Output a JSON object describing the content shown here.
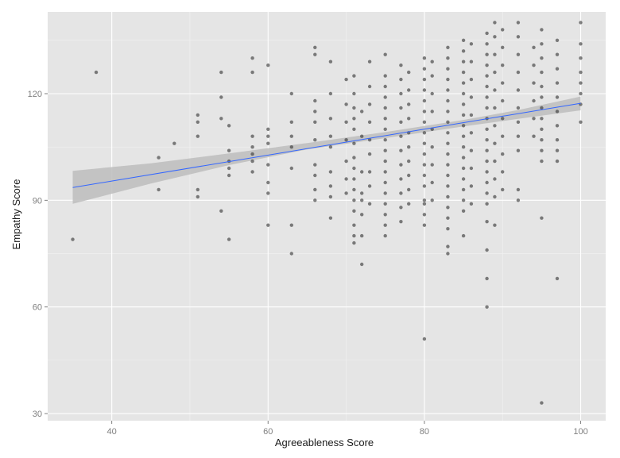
{
  "chart_data": {
    "type": "scatter",
    "title": "",
    "xlabel": "Agreeableness Score",
    "ylabel": "Empathy Score",
    "xlim": [
      31.8,
      103.2
    ],
    "ylim": [
      28,
      143
    ],
    "x_ticks": [
      40,
      60,
      80,
      100
    ],
    "x_minor_ticks": [
      30,
      50,
      70,
      90
    ],
    "y_ticks": [
      30,
      60,
      90,
      120
    ],
    "y_minor_ticks": [
      45,
      75,
      105,
      135
    ],
    "grid": true,
    "legend": "none",
    "colors": {
      "panel": "#e5e5e5",
      "grid": "#ffffff",
      "point": "#2f2f2f",
      "fit_line": "#3366ff",
      "confidence_band": "#bdbdbd"
    },
    "points": [
      {
        "x": 35,
        "y": 79
      },
      {
        "x": 38,
        "y": 126
      },
      {
        "x": 46,
        "y": 102
      },
      {
        "x": 46,
        "y": 93
      },
      {
        "x": 48,
        "y": 106
      },
      {
        "x": 51,
        "y": 114
      },
      {
        "x": 51,
        "y": 112
      },
      {
        "x": 51,
        "y": 108
      },
      {
        "x": 51,
        "y": 93
      },
      {
        "x": 51,
        "y": 91
      },
      {
        "x": 54,
        "y": 126
      },
      {
        "x": 54,
        "y": 119
      },
      {
        "x": 54,
        "y": 113
      },
      {
        "x": 54,
        "y": 87
      },
      {
        "x": 55,
        "y": 111
      },
      {
        "x": 55,
        "y": 104
      },
      {
        "x": 55,
        "y": 101
      },
      {
        "x": 55,
        "y": 99
      },
      {
        "x": 55,
        "y": 97
      },
      {
        "x": 55,
        "y": 79
      },
      {
        "x": 58,
        "y": 130
      },
      {
        "x": 58,
        "y": 126
      },
      {
        "x": 58,
        "y": 108
      },
      {
        "x": 58,
        "y": 105
      },
      {
        "x": 58,
        "y": 103
      },
      {
        "x": 58,
        "y": 101
      },
      {
        "x": 58,
        "y": 98
      },
      {
        "x": 60,
        "y": 128
      },
      {
        "x": 60,
        "y": 110
      },
      {
        "x": 60,
        "y": 108
      },
      {
        "x": 60,
        "y": 106
      },
      {
        "x": 60,
        "y": 100
      },
      {
        "x": 60,
        "y": 95
      },
      {
        "x": 60,
        "y": 92
      },
      {
        "x": 60,
        "y": 83
      },
      {
        "x": 63,
        "y": 120
      },
      {
        "x": 63,
        "y": 112
      },
      {
        "x": 63,
        "y": 108
      },
      {
        "x": 63,
        "y": 105
      },
      {
        "x": 63,
        "y": 99
      },
      {
        "x": 63,
        "y": 83
      },
      {
        "x": 63,
        "y": 75
      },
      {
        "x": 66,
        "y": 133
      },
      {
        "x": 66,
        "y": 131
      },
      {
        "x": 66,
        "y": 118
      },
      {
        "x": 66,
        "y": 115
      },
      {
        "x": 66,
        "y": 112
      },
      {
        "x": 66,
        "y": 107
      },
      {
        "x": 66,
        "y": 100
      },
      {
        "x": 66,
        "y": 97
      },
      {
        "x": 66,
        "y": 93
      },
      {
        "x": 66,
        "y": 90
      },
      {
        "x": 68,
        "y": 129
      },
      {
        "x": 68,
        "y": 120
      },
      {
        "x": 68,
        "y": 113
      },
      {
        "x": 68,
        "y": 108
      },
      {
        "x": 68,
        "y": 105
      },
      {
        "x": 68,
        "y": 98
      },
      {
        "x": 68,
        "y": 94
      },
      {
        "x": 68,
        "y": 91
      },
      {
        "x": 68,
        "y": 85
      },
      {
        "x": 70,
        "y": 124
      },
      {
        "x": 70,
        "y": 117
      },
      {
        "x": 70,
        "y": 112
      },
      {
        "x": 70,
        "y": 107
      },
      {
        "x": 70,
        "y": 101
      },
      {
        "x": 70,
        "y": 96
      },
      {
        "x": 70,
        "y": 92
      },
      {
        "x": 71,
        "y": 125
      },
      {
        "x": 71,
        "y": 120
      },
      {
        "x": 71,
        "y": 116
      },
      {
        "x": 71,
        "y": 113
      },
      {
        "x": 71,
        "y": 110
      },
      {
        "x": 71,
        "y": 106
      },
      {
        "x": 71,
        "y": 102
      },
      {
        "x": 71,
        "y": 99
      },
      {
        "x": 71,
        "y": 96
      },
      {
        "x": 71,
        "y": 93
      },
      {
        "x": 71,
        "y": 90
      },
      {
        "x": 71,
        "y": 87
      },
      {
        "x": 71,
        "y": 83
      },
      {
        "x": 71,
        "y": 80
      },
      {
        "x": 71,
        "y": 78
      },
      {
        "x": 72,
        "y": 115
      },
      {
        "x": 72,
        "y": 108
      },
      {
        "x": 72,
        "y": 98
      },
      {
        "x": 72,
        "y": 92
      },
      {
        "x": 72,
        "y": 90
      },
      {
        "x": 72,
        "y": 86
      },
      {
        "x": 72,
        "y": 80
      },
      {
        "x": 72,
        "y": 72
      },
      {
        "x": 73,
        "y": 129
      },
      {
        "x": 73,
        "y": 122
      },
      {
        "x": 73,
        "y": 117
      },
      {
        "x": 73,
        "y": 112
      },
      {
        "x": 73,
        "y": 107
      },
      {
        "x": 73,
        "y": 103
      },
      {
        "x": 73,
        "y": 98
      },
      {
        "x": 73,
        "y": 94
      },
      {
        "x": 73,
        "y": 89
      },
      {
        "x": 75,
        "y": 131
      },
      {
        "x": 75,
        "y": 125
      },
      {
        "x": 75,
        "y": 122
      },
      {
        "x": 75,
        "y": 119
      },
      {
        "x": 75,
        "y": 116
      },
      {
        "x": 75,
        "y": 113
      },
      {
        "x": 75,
        "y": 110
      },
      {
        "x": 75,
        "y": 107
      },
      {
        "x": 75,
        "y": 104
      },
      {
        "x": 75,
        "y": 101
      },
      {
        "x": 75,
        "y": 98
      },
      {
        "x": 75,
        "y": 95
      },
      {
        "x": 75,
        "y": 92
      },
      {
        "x": 75,
        "y": 89
      },
      {
        "x": 75,
        "y": 86
      },
      {
        "x": 75,
        "y": 83
      },
      {
        "x": 75,
        "y": 80
      },
      {
        "x": 77,
        "y": 128
      },
      {
        "x": 77,
        "y": 124
      },
      {
        "x": 77,
        "y": 120
      },
      {
        "x": 77,
        "y": 116
      },
      {
        "x": 77,
        "y": 112
      },
      {
        "x": 77,
        "y": 108
      },
      {
        "x": 77,
        "y": 104
      },
      {
        "x": 77,
        "y": 100
      },
      {
        "x": 77,
        "y": 96
      },
      {
        "x": 77,
        "y": 92
      },
      {
        "x": 77,
        "y": 88
      },
      {
        "x": 77,
        "y": 84
      },
      {
        "x": 78,
        "y": 126
      },
      {
        "x": 78,
        "y": 121
      },
      {
        "x": 78,
        "y": 117
      },
      {
        "x": 78,
        "y": 113
      },
      {
        "x": 78,
        "y": 109
      },
      {
        "x": 78,
        "y": 105
      },
      {
        "x": 78,
        "y": 101
      },
      {
        "x": 78,
        "y": 97
      },
      {
        "x": 78,
        "y": 93
      },
      {
        "x": 78,
        "y": 89
      },
      {
        "x": 80,
        "y": 130
      },
      {
        "x": 80,
        "y": 127
      },
      {
        "x": 80,
        "y": 124
      },
      {
        "x": 80,
        "y": 121
      },
      {
        "x": 80,
        "y": 118
      },
      {
        "x": 80,
        "y": 115
      },
      {
        "x": 80,
        "y": 112
      },
      {
        "x": 80,
        "y": 109
      },
      {
        "x": 80,
        "y": 106
      },
      {
        "x": 80,
        "y": 103
      },
      {
        "x": 80,
        "y": 100
      },
      {
        "x": 80,
        "y": 97
      },
      {
        "x": 80,
        "y": 94
      },
      {
        "x": 80,
        "y": 90
      },
      {
        "x": 80,
        "y": 89
      },
      {
        "x": 80,
        "y": 86
      },
      {
        "x": 80,
        "y": 83
      },
      {
        "x": 80,
        "y": 51
      },
      {
        "x": 81,
        "y": 129
      },
      {
        "x": 81,
        "y": 125
      },
      {
        "x": 81,
        "y": 120
      },
      {
        "x": 81,
        "y": 115
      },
      {
        "x": 81,
        "y": 110
      },
      {
        "x": 81,
        "y": 105
      },
      {
        "x": 81,
        "y": 100
      },
      {
        "x": 81,
        "y": 95
      },
      {
        "x": 81,
        "y": 90
      },
      {
        "x": 83,
        "y": 133
      },
      {
        "x": 83,
        "y": 130
      },
      {
        "x": 83,
        "y": 127
      },
      {
        "x": 83,
        "y": 124
      },
      {
        "x": 83,
        "y": 121
      },
      {
        "x": 83,
        "y": 118
      },
      {
        "x": 83,
        "y": 115
      },
      {
        "x": 83,
        "y": 112
      },
      {
        "x": 83,
        "y": 109
      },
      {
        "x": 83,
        "y": 106
      },
      {
        "x": 83,
        "y": 103
      },
      {
        "x": 83,
        "y": 100
      },
      {
        "x": 83,
        "y": 97
      },
      {
        "x": 83,
        "y": 94
      },
      {
        "x": 83,
        "y": 91
      },
      {
        "x": 83,
        "y": 88
      },
      {
        "x": 83,
        "y": 85
      },
      {
        "x": 83,
        "y": 82
      },
      {
        "x": 83,
        "y": 77
      },
      {
        "x": 83,
        "y": 75
      },
      {
        "x": 85,
        "y": 135
      },
      {
        "x": 85,
        "y": 132
      },
      {
        "x": 85,
        "y": 129
      },
      {
        "x": 85,
        "y": 126
      },
      {
        "x": 85,
        "y": 123
      },
      {
        "x": 85,
        "y": 120
      },
      {
        "x": 85,
        "y": 117
      },
      {
        "x": 85,
        "y": 114
      },
      {
        "x": 85,
        "y": 111
      },
      {
        "x": 85,
        "y": 108
      },
      {
        "x": 85,
        "y": 105
      },
      {
        "x": 85,
        "y": 102
      },
      {
        "x": 85,
        "y": 99
      },
      {
        "x": 85,
        "y": 96
      },
      {
        "x": 85,
        "y": 93
      },
      {
        "x": 85,
        "y": 90
      },
      {
        "x": 85,
        "y": 87
      },
      {
        "x": 85,
        "y": 80
      },
      {
        "x": 86,
        "y": 134
      },
      {
        "x": 86,
        "y": 129
      },
      {
        "x": 86,
        "y": 124
      },
      {
        "x": 86,
        "y": 119
      },
      {
        "x": 86,
        "y": 114
      },
      {
        "x": 86,
        "y": 109
      },
      {
        "x": 86,
        "y": 104
      },
      {
        "x": 86,
        "y": 99
      },
      {
        "x": 86,
        "y": 94
      },
      {
        "x": 86,
        "y": 89
      },
      {
        "x": 88,
        "y": 137
      },
      {
        "x": 88,
        "y": 134
      },
      {
        "x": 88,
        "y": 131
      },
      {
        "x": 88,
        "y": 128
      },
      {
        "x": 88,
        "y": 125
      },
      {
        "x": 88,
        "y": 122
      },
      {
        "x": 88,
        "y": 119
      },
      {
        "x": 88,
        "y": 116
      },
      {
        "x": 88,
        "y": 113
      },
      {
        "x": 88,
        "y": 110
      },
      {
        "x": 88,
        "y": 107
      },
      {
        "x": 88,
        "y": 104
      },
      {
        "x": 88,
        "y": 101
      },
      {
        "x": 88,
        "y": 98
      },
      {
        "x": 88,
        "y": 95
      },
      {
        "x": 88,
        "y": 92
      },
      {
        "x": 88,
        "y": 89
      },
      {
        "x": 88,
        "y": 84
      },
      {
        "x": 88,
        "y": 76
      },
      {
        "x": 88,
        "y": 68
      },
      {
        "x": 88,
        "y": 60
      },
      {
        "x": 89,
        "y": 140
      },
      {
        "x": 89,
        "y": 136
      },
      {
        "x": 89,
        "y": 131
      },
      {
        "x": 89,
        "y": 126
      },
      {
        "x": 89,
        "y": 121
      },
      {
        "x": 89,
        "y": 116
      },
      {
        "x": 89,
        "y": 111
      },
      {
        "x": 89,
        "y": 106
      },
      {
        "x": 89,
        "y": 101
      },
      {
        "x": 89,
        "y": 96
      },
      {
        "x": 89,
        "y": 91
      },
      {
        "x": 89,
        "y": 83
      },
      {
        "x": 90,
        "y": 138
      },
      {
        "x": 90,
        "y": 133
      },
      {
        "x": 90,
        "y": 128
      },
      {
        "x": 90,
        "y": 123
      },
      {
        "x": 90,
        "y": 118
      },
      {
        "x": 90,
        "y": 113
      },
      {
        "x": 90,
        "y": 108
      },
      {
        "x": 90,
        "y": 103
      },
      {
        "x": 90,
        "y": 98
      },
      {
        "x": 90,
        "y": 93
      },
      {
        "x": 92,
        "y": 140
      },
      {
        "x": 92,
        "y": 136
      },
      {
        "x": 92,
        "y": 131
      },
      {
        "x": 92,
        "y": 126
      },
      {
        "x": 92,
        "y": 121
      },
      {
        "x": 92,
        "y": 116
      },
      {
        "x": 92,
        "y": 112
      },
      {
        "x": 92,
        "y": 108
      },
      {
        "x": 92,
        "y": 104
      },
      {
        "x": 92,
        "y": 93
      },
      {
        "x": 92,
        "y": 90
      },
      {
        "x": 94,
        "y": 133
      },
      {
        "x": 94,
        "y": 128
      },
      {
        "x": 94,
        "y": 123
      },
      {
        "x": 94,
        "y": 118
      },
      {
        "x": 94,
        "y": 113
      },
      {
        "x": 94,
        "y": 108
      },
      {
        "x": 95,
        "y": 138
      },
      {
        "x": 95,
        "y": 134
      },
      {
        "x": 95,
        "y": 130
      },
      {
        "x": 95,
        "y": 126
      },
      {
        "x": 95,
        "y": 122
      },
      {
        "x": 95,
        "y": 119
      },
      {
        "x": 95,
        "y": 116
      },
      {
        "x": 95,
        "y": 113
      },
      {
        "x": 95,
        "y": 110
      },
      {
        "x": 95,
        "y": 107
      },
      {
        "x": 95,
        "y": 104
      },
      {
        "x": 95,
        "y": 101
      },
      {
        "x": 95,
        "y": 85
      },
      {
        "x": 95,
        "y": 33
      },
      {
        "x": 97,
        "y": 135
      },
      {
        "x": 97,
        "y": 131
      },
      {
        "x": 97,
        "y": 127
      },
      {
        "x": 97,
        "y": 123
      },
      {
        "x": 97,
        "y": 119
      },
      {
        "x": 97,
        "y": 115
      },
      {
        "x": 97,
        "y": 111
      },
      {
        "x": 97,
        "y": 107
      },
      {
        "x": 97,
        "y": 104
      },
      {
        "x": 97,
        "y": 101
      },
      {
        "x": 97,
        "y": 68
      },
      {
        "x": 100,
        "y": 140
      },
      {
        "x": 100,
        "y": 134
      },
      {
        "x": 100,
        "y": 130
      },
      {
        "x": 100,
        "y": 126
      },
      {
        "x": 100,
        "y": 123
      },
      {
        "x": 100,
        "y": 120
      },
      {
        "x": 100,
        "y": 117
      },
      {
        "x": 100,
        "y": 112
      }
    ],
    "fit_line": [
      {
        "x": 35,
        "y": 93.6
      },
      {
        "x": 100,
        "y": 117.3
      }
    ],
    "confidence_band": [
      {
        "x": 35,
        "lower": 89.0,
        "upper": 98.3
      },
      {
        "x": 45,
        "lower": 94.7,
        "upper": 100.4
      },
      {
        "x": 55,
        "lower": 99.9,
        "upper": 103.2
      },
      {
        "x": 65,
        "lower": 104.3,
        "upper": 106.1
      },
      {
        "x": 75,
        "lower": 107.5,
        "upper": 109.2
      },
      {
        "x": 85,
        "lower": 110.8,
        "upper": 112.6
      },
      {
        "x": 92,
        "lower": 112.9,
        "upper": 115.4
      },
      {
        "x": 100,
        "lower": 115.3,
        "upper": 119.2
      }
    ]
  }
}
